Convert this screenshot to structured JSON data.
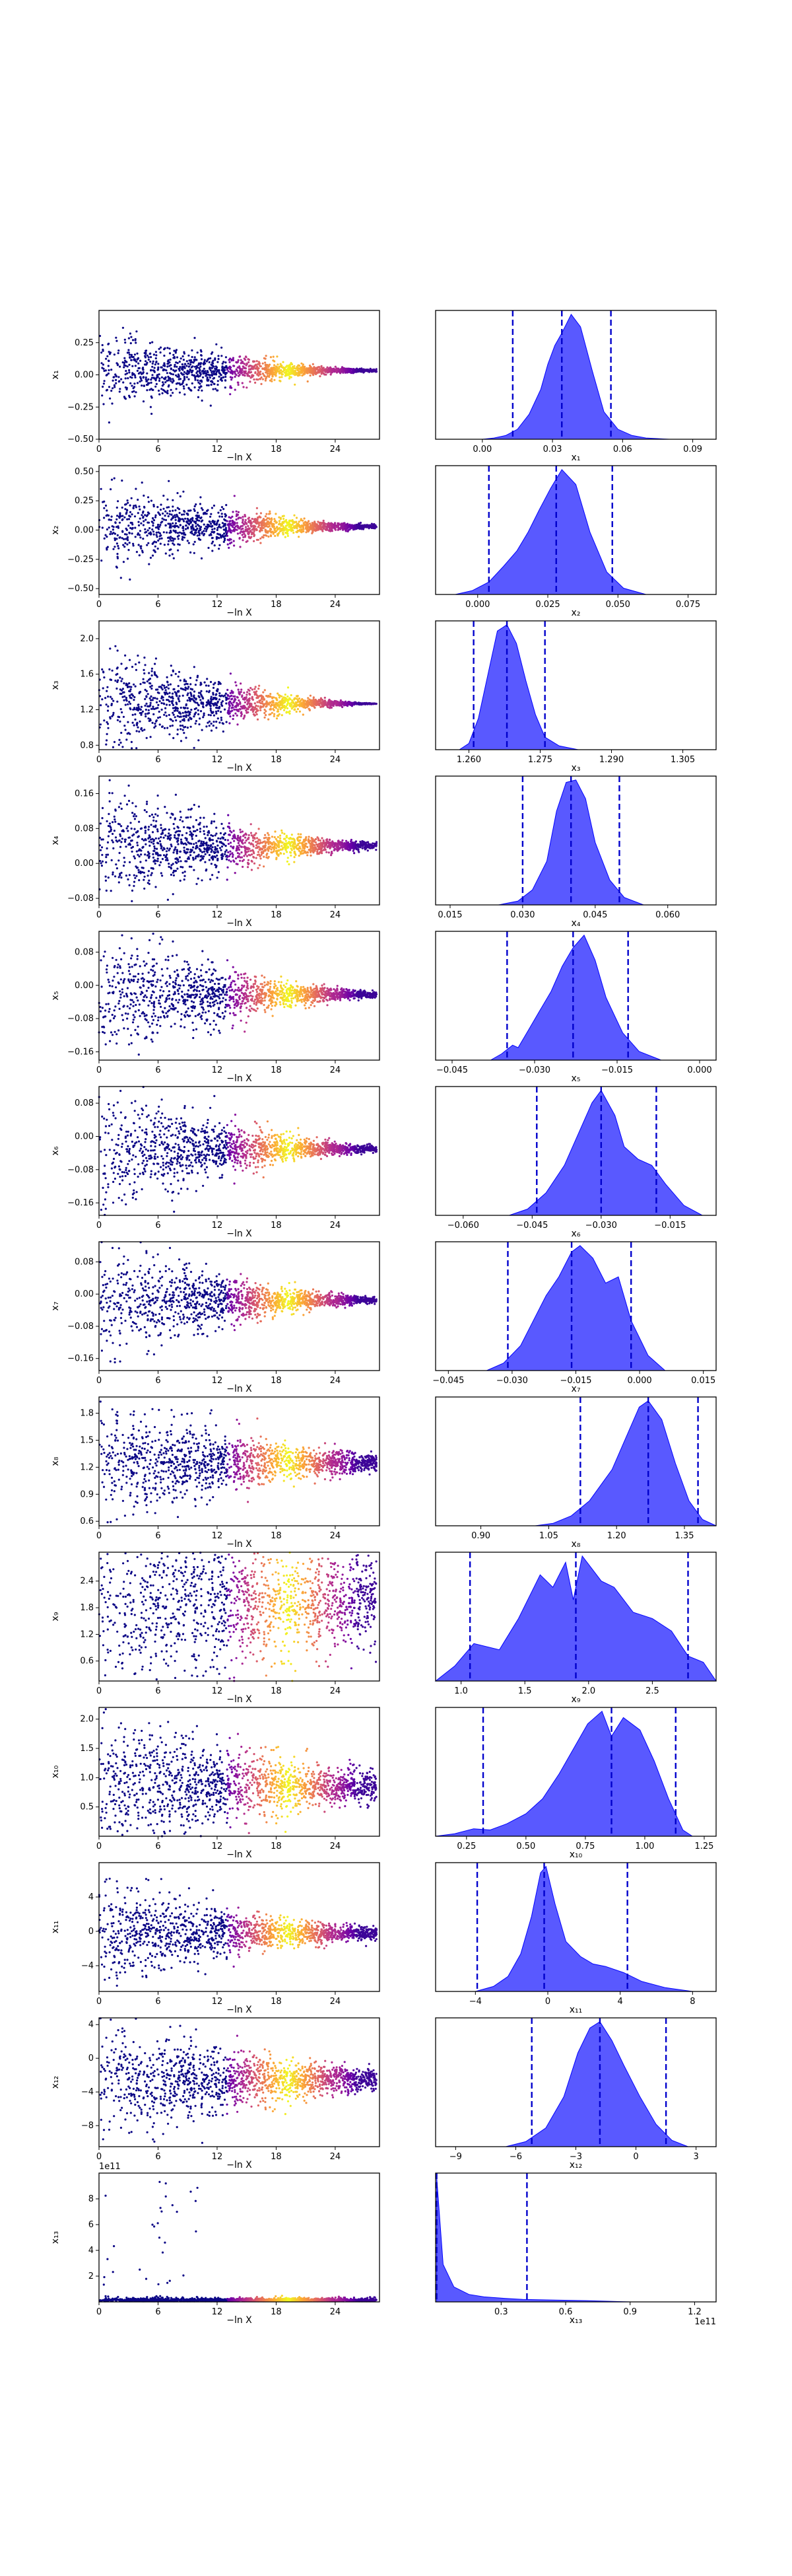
{
  "chart_data": {
    "type": "trace_and_marginal_posterior_grid",
    "left_column": {
      "type": "scatter",
      "xlabel": "−ln X",
      "xlim": [
        0,
        28.5
      ],
      "x_ticks": [
        "0",
        "6",
        "12",
        "18",
        "24"
      ],
      "colormap": [
        "#0d0887",
        "#6a00a8",
        "#b12a90",
        "#e16462",
        "#fca636",
        "#f0f921"
      ]
    },
    "right_column": {
      "type": "area",
      "fill": "#0000ff",
      "fill_alpha": 0.65,
      "quantile_line_color": "#0000cc",
      "quantile_line_style": "dashed"
    },
    "rows": [
      {
        "param": "x1",
        "ylabel": "x₁",
        "xlabel": "x₁",
        "trace_ylim": [
          -0.5,
          0.5
        ],
        "trace_yticks": [
          "−0.50",
          "−0.25",
          "0.00",
          "0.25"
        ],
        "trace_center": 0.034,
        "trace_spread0": 0.15,
        "trace_spread_end": 0.005,
        "post_xlim": [
          -0.02,
          0.1
        ],
        "post_xticks": [
          "0.00",
          "0.03",
          "0.06",
          "0.09"
        ],
        "post_lines": [
          0.013,
          0.034,
          0.055
        ],
        "post_density": [
          0.0,
          0.01,
          0.03,
          0.08,
          0.2,
          0.4,
          0.6,
          0.75,
          0.85,
          1.0,
          0.9,
          0.55,
          0.22,
          0.08,
          0.03,
          0.01,
          0.0
        ],
        "post_density_x": [
          0.0,
          0.005,
          0.01,
          0.015,
          0.02,
          0.025,
          0.028,
          0.031,
          0.034,
          0.038,
          0.042,
          0.047,
          0.052,
          0.058,
          0.064,
          0.07,
          0.08
        ]
      },
      {
        "param": "x2",
        "ylabel": "x₂",
        "xlabel": "x₂",
        "trace_ylim": [
          -0.55,
          0.55
        ],
        "trace_yticks": [
          "−0.50",
          "−0.25",
          "0.00",
          "0.25",
          "0.50"
        ],
        "trace_center": 0.03,
        "trace_spread0": 0.18,
        "trace_spread_end": 0.008,
        "post_xlim": [
          -0.015,
          0.085
        ],
        "post_xticks": [
          "0.000",
          "0.025",
          "0.050",
          "0.075"
        ],
        "post_lines": [
          0.004,
          0.028,
          0.048
        ],
        "post_density": [
          0.0,
          0.03,
          0.1,
          0.22,
          0.35,
          0.5,
          0.68,
          0.85,
          1.0,
          0.88,
          0.5,
          0.18,
          0.05,
          0.0
        ],
        "post_density_x": [
          -0.008,
          -0.002,
          0.004,
          0.009,
          0.014,
          0.018,
          0.022,
          0.026,
          0.03,
          0.035,
          0.04,
          0.046,
          0.052,
          0.06
        ]
      },
      {
        "param": "x3",
        "ylabel": "x₃",
        "xlabel": "x₃",
        "trace_ylim": [
          0.75,
          2.2
        ],
        "trace_yticks": [
          "0.8",
          "1.2",
          "1.6",
          "2.0"
        ],
        "trace_center": 1.268,
        "trace_spread0": 0.3,
        "trace_spread_end": 0.002,
        "post_xlim": [
          1.253,
          1.312
        ],
        "post_xticks": [
          "1.260",
          "1.275",
          "1.290",
          "1.305"
        ],
        "post_lines": [
          1.261,
          1.268,
          1.276
        ],
        "post_density": [
          0.0,
          0.05,
          0.25,
          0.6,
          0.95,
          1.0,
          0.85,
          0.55,
          0.28,
          0.1,
          0.03,
          0.0
        ],
        "post_density_x": [
          1.258,
          1.26,
          1.262,
          1.264,
          1.266,
          1.268,
          1.27,
          1.272,
          1.274,
          1.276,
          1.279,
          1.283
        ]
      },
      {
        "param": "x4",
        "ylabel": "x₄",
        "xlabel": "x₄",
        "trace_ylim": [
          -0.095,
          0.2
        ],
        "trace_yticks": [
          "−0.08",
          "0.00",
          "0.08",
          "0.16"
        ],
        "trace_center": 0.04,
        "trace_spread0": 0.06,
        "trace_spread_end": 0.004,
        "post_xlim": [
          0.012,
          0.07
        ],
        "post_xticks": [
          "0.015",
          "0.030",
          "0.045",
          "0.060"
        ],
        "post_lines": [
          0.03,
          0.04,
          0.05
        ],
        "post_density": [
          0.0,
          0.03,
          0.12,
          0.35,
          0.75,
          0.98,
          1.0,
          0.85,
          0.5,
          0.2,
          0.06,
          0.0
        ],
        "post_density_x": [
          0.025,
          0.029,
          0.032,
          0.035,
          0.037,
          0.039,
          0.041,
          0.043,
          0.045,
          0.048,
          0.051,
          0.055
        ]
      },
      {
        "param": "x5",
        "ylabel": "x₅",
        "xlabel": "x₅",
        "trace_ylim": [
          -0.18,
          0.13
        ],
        "trace_yticks": [
          "−0.16",
          "−0.08",
          "0.00",
          "0.08"
        ],
        "trace_center": -0.022,
        "trace_spread0": 0.07,
        "trace_spread_end": 0.004,
        "post_xlim": [
          -0.048,
          0.003
        ],
        "post_xticks": [
          "−0.045",
          "−0.030",
          "−0.015",
          "0.000"
        ],
        "post_lines": [
          -0.035,
          -0.023,
          -0.013
        ],
        "post_density": [
          0.0,
          0.05,
          0.12,
          0.1,
          0.25,
          0.4,
          0.55,
          0.75,
          0.9,
          1.0,
          0.8,
          0.5,
          0.22,
          0.07,
          0.0
        ],
        "post_density_x": [
          -0.038,
          -0.036,
          -0.034,
          -0.033,
          -0.031,
          -0.029,
          -0.027,
          -0.025,
          -0.023,
          -0.021,
          -0.019,
          -0.017,
          -0.014,
          -0.011,
          -0.007
        ]
      },
      {
        "param": "x6",
        "ylabel": "x₆",
        "xlabel": "x₆",
        "trace_ylim": [
          -0.19,
          0.12
        ],
        "trace_yticks": [
          "−0.16",
          "−0.08",
          "0.00",
          "0.08"
        ],
        "trace_center": -0.03,
        "trace_spread0": 0.07,
        "trace_spread_end": 0.004,
        "post_xlim": [
          -0.066,
          -0.005
        ],
        "post_xticks": [
          "−0.060",
          "−0.045",
          "−0.030",
          "−0.015"
        ],
        "post_lines": [
          -0.044,
          -0.03,
          -0.018
        ],
        "post_density": [
          0.0,
          0.05,
          0.18,
          0.4,
          0.65,
          0.9,
          1.0,
          0.8,
          0.55,
          0.45,
          0.4,
          0.25,
          0.08,
          0.0
        ],
        "post_density_x": [
          -0.05,
          -0.046,
          -0.042,
          -0.038,
          -0.035,
          -0.032,
          -0.03,
          -0.027,
          -0.025,
          -0.022,
          -0.019,
          -0.016,
          -0.012,
          -0.008
        ]
      },
      {
        "param": "x7",
        "ylabel": "x₇",
        "xlabel": "x₇",
        "trace_ylim": [
          -0.19,
          0.13
        ],
        "trace_yticks": [
          "−0.16",
          "−0.08",
          "0.00",
          "0.08"
        ],
        "trace_center": -0.015,
        "trace_spread0": 0.07,
        "trace_spread_end": 0.004,
        "post_xlim": [
          -0.048,
          0.018
        ],
        "post_xticks": [
          "−0.045",
          "−0.030",
          "−0.015",
          "0.000",
          "0.015"
        ],
        "post_lines": [
          -0.031,
          -0.016,
          -0.002
        ],
        "post_density": [
          0.0,
          0.06,
          0.2,
          0.4,
          0.6,
          0.75,
          0.95,
          1.0,
          0.9,
          0.7,
          0.75,
          0.4,
          0.12,
          0.0
        ],
        "post_density_x": [
          -0.036,
          -0.032,
          -0.028,
          -0.025,
          -0.022,
          -0.019,
          -0.016,
          -0.014,
          -0.011,
          -0.008,
          -0.005,
          -0.002,
          0.002,
          0.006
        ]
      },
      {
        "param": "x8",
        "ylabel": "x₈",
        "xlabel": "x₈",
        "trace_ylim": [
          0.55,
          1.98
        ],
        "trace_yticks": [
          "0.6",
          "0.9",
          "1.2",
          "1.5",
          "1.8"
        ],
        "trace_center": 1.25,
        "trace_spread0": 0.3,
        "trace_spread_end": 0.05,
        "post_xlim": [
          0.8,
          1.42
        ],
        "post_xticks": [
          "0.90",
          "1.05",
          "1.20",
          "1.35"
        ],
        "post_lines": [
          1.12,
          1.27,
          1.38
        ],
        "post_density": [
          0.0,
          0.02,
          0.08,
          0.2,
          0.35,
          0.45,
          0.7,
          0.95,
          1.0,
          0.85,
          0.5,
          0.2,
          0.05,
          0.0
        ],
        "post_density_x": [
          1.02,
          1.06,
          1.1,
          1.14,
          1.17,
          1.19,
          1.22,
          1.25,
          1.27,
          1.3,
          1.33,
          1.36,
          1.39,
          1.42
        ]
      },
      {
        "param": "x9",
        "ylabel": "x₉",
        "xlabel": "x₉",
        "trace_ylim": [
          0.15,
          3.05
        ],
        "trace_yticks": [
          "0.6",
          "1.2",
          "1.8",
          "2.4"
        ],
        "trace_center": 1.9,
        "trace_spread0": 0.8,
        "trace_spread_end": 0.5,
        "post_xlim": [
          0.8,
          3.0
        ],
        "post_xticks": [
          "1.0",
          "1.5",
          "2.0",
          "2.5"
        ],
        "post_lines": [
          1.07,
          1.9,
          2.78
        ],
        "post_density": [
          0.0,
          0.12,
          0.3,
          0.25,
          0.5,
          0.85,
          0.75,
          0.95,
          0.65,
          1.0,
          0.8,
          0.75,
          0.55,
          0.5,
          0.4,
          0.2,
          0.15,
          0.0
        ],
        "post_density_x": [
          0.8,
          0.95,
          1.1,
          1.3,
          1.45,
          1.62,
          1.72,
          1.82,
          1.88,
          1.95,
          2.1,
          2.2,
          2.35,
          2.5,
          2.65,
          2.78,
          2.9,
          3.0
        ]
      },
      {
        "param": "x10",
        "ylabel": "x₁₀",
        "xlabel": "x₁₀",
        "trace_ylim": [
          0.0,
          2.2
        ],
        "trace_yticks": [
          "0.5",
          "1.0",
          "1.5",
          "2.0"
        ],
        "trace_center": 0.85,
        "trace_spread0": 0.45,
        "trace_spread_end": 0.15,
        "post_xlim": [
          0.12,
          1.3
        ],
        "post_xticks": [
          "0.25",
          "0.50",
          "0.75",
          "1.00",
          "1.25"
        ],
        "post_lines": [
          0.32,
          0.86,
          1.13
        ],
        "post_density": [
          0.0,
          0.02,
          0.06,
          0.05,
          0.1,
          0.18,
          0.3,
          0.5,
          0.7,
          0.9,
          1.0,
          0.8,
          0.95,
          0.85,
          0.6,
          0.3,
          0.05,
          0.0
        ],
        "post_density_x": [
          0.12,
          0.2,
          0.28,
          0.35,
          0.42,
          0.5,
          0.57,
          0.64,
          0.7,
          0.76,
          0.82,
          0.86,
          0.91,
          0.98,
          1.04,
          1.1,
          1.16,
          1.2
        ]
      },
      {
        "param": "x11",
        "ylabel": "x₁₁",
        "xlabel": "x₁₁",
        "trace_ylim": [
          -7.0,
          8.0
        ],
        "trace_yticks": [
          "−4",
          "0",
          "4"
        ],
        "trace_center": -0.2,
        "trace_spread0": 2.8,
        "trace_spread_end": 0.4,
        "post_xlim": [
          -6.2,
          9.3
        ],
        "post_xticks": [
          "−4",
          "0",
          "4",
          "8"
        ],
        "post_lines": [
          -3.9,
          -0.2,
          4.4
        ],
        "post_density": [
          0.0,
          0.04,
          0.12,
          0.3,
          0.6,
          0.95,
          1.0,
          0.7,
          0.4,
          0.28,
          0.22,
          0.2,
          0.15,
          0.08,
          0.03,
          0.0
        ],
        "post_density_x": [
          -4.0,
          -3.0,
          -2.2,
          -1.5,
          -0.9,
          -0.4,
          -0.1,
          0.4,
          1.0,
          1.8,
          2.5,
          3.2,
          4.2,
          5.2,
          6.5,
          8.0
        ]
      },
      {
        "param": "x12",
        "ylabel": "x₁₂",
        "xlabel": "x₁₂",
        "trace_ylim": [
          -10.5,
          4.8
        ],
        "trace_yticks": [
          "−8",
          "−4",
          "0",
          "4"
        ],
        "trace_center": -2.5,
        "trace_spread0": 3.0,
        "trace_spread_end": 0.7,
        "post_xlim": [
          -10.0,
          4.0
        ],
        "post_xticks": [
          "−9",
          "−6",
          "−3",
          "0",
          "3"
        ],
        "post_lines": [
          -5.2,
          -1.8,
          1.5
        ],
        "post_density": [
          0.0,
          0.04,
          0.15,
          0.4,
          0.75,
          0.95,
          1.0,
          0.85,
          0.65,
          0.4,
          0.18,
          0.05,
          0.0
        ],
        "post_density_x": [
          -6.5,
          -5.5,
          -4.5,
          -3.6,
          -2.9,
          -2.3,
          -1.8,
          -1.2,
          -0.6,
          0.2,
          1.0,
          1.8,
          2.6
        ]
      },
      {
        "param": "x13",
        "ylabel": "x₁₃",
        "xlabel": "x₁₃",
        "trace_ylim": [
          0.0,
          10.0
        ],
        "trace_yticks": [
          "2",
          "4",
          "6",
          "8"
        ],
        "trace_offset": "1e11",
        "trace_center": 0.15,
        "trace_spread0": 3.0,
        "trace_spread_end": 0.1,
        "trace_skewed": true,
        "post_xlim": [
          -0.005,
          1.3
        ],
        "post_xticks": [
          "0.3",
          "0.6",
          "0.9",
          "1.2"
        ],
        "post_offset": "1e11",
        "post_lines": [
          0.0,
          0.42
        ],
        "post_density": [
          1.0,
          0.3,
          0.12,
          0.06,
          0.04,
          0.03,
          0.02,
          0.015,
          0.01,
          0.0
        ],
        "post_density_x": [
          0.0,
          0.03,
          0.08,
          0.15,
          0.22,
          0.3,
          0.4,
          0.55,
          0.7,
          0.9
        ]
      }
    ]
  }
}
